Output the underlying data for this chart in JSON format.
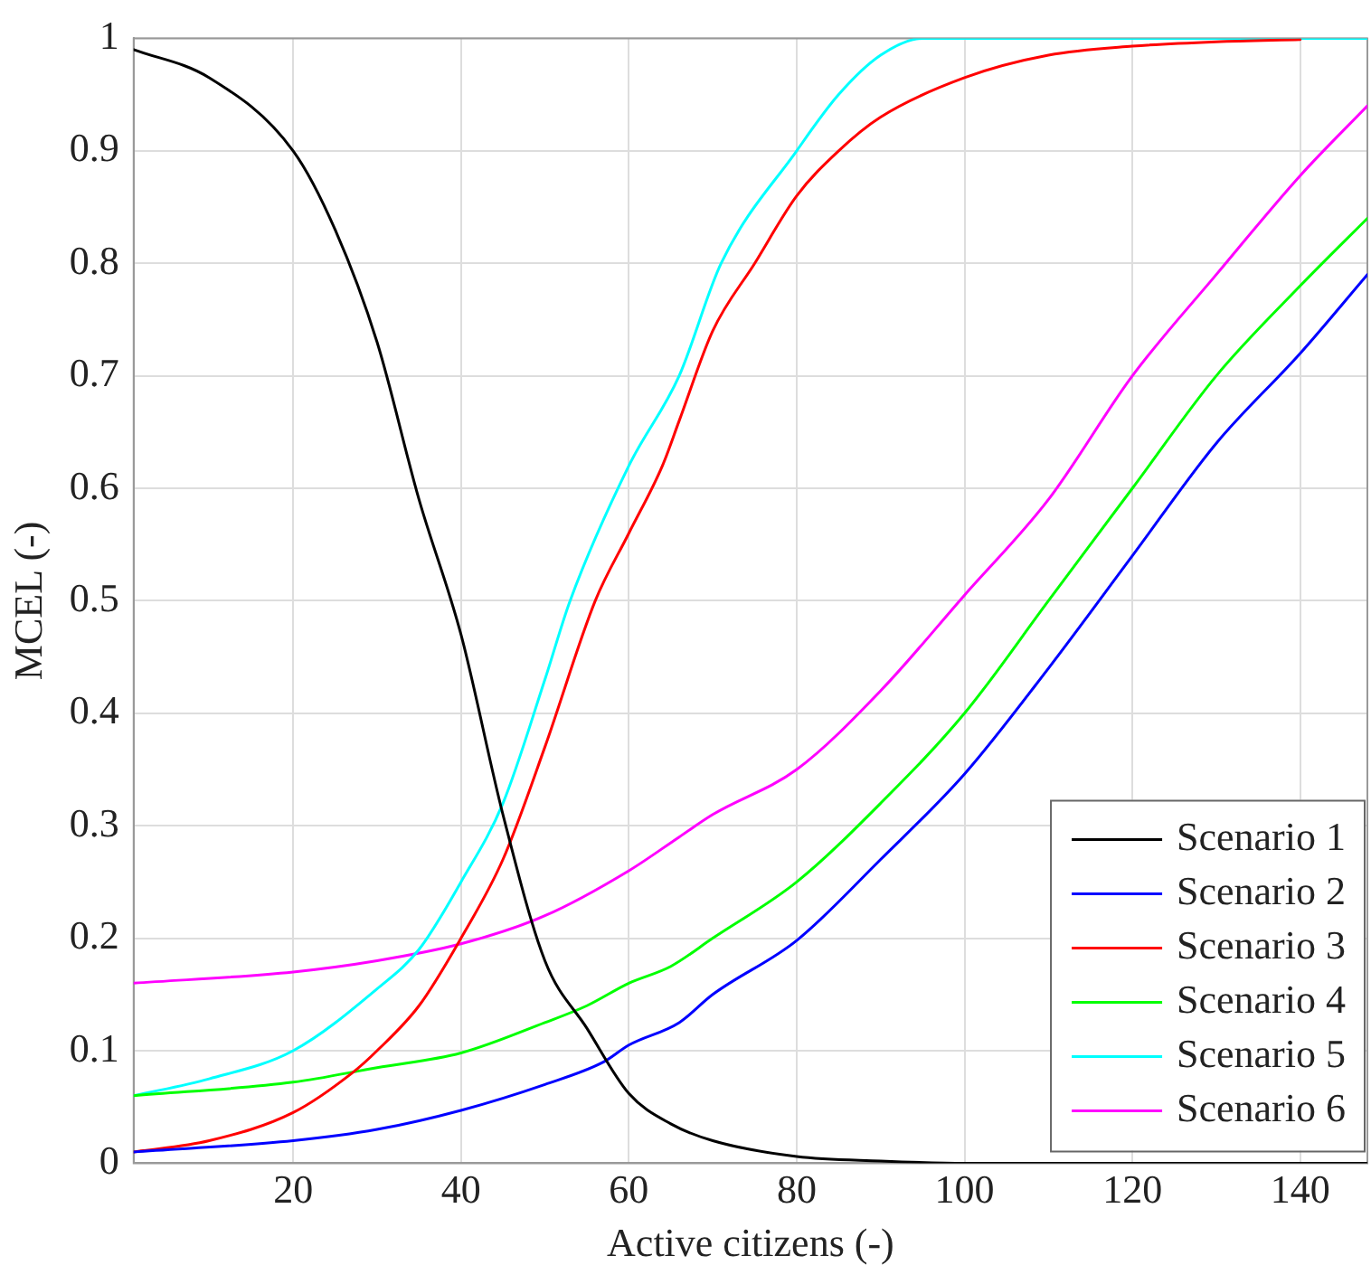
{
  "chart_data": {
    "type": "line",
    "xlabel": "Active citizens (-)",
    "ylabel": "MCEL (-)",
    "xlim": [
      1,
      148
    ],
    "ylim": [
      0,
      1
    ],
    "xticks": [
      20,
      40,
      60,
      80,
      100,
      120,
      140
    ],
    "yticks": [
      0,
      0.1,
      0.2,
      0.3,
      0.4,
      0.5,
      0.6,
      0.7,
      0.8,
      0.9,
      1
    ],
    "grid": true,
    "legend": "bottom right",
    "marker": "none",
    "line_style": "solid",
    "series": [
      {
        "name": "Scenario 1",
        "color": "#000000",
        "x": [
          1,
          10,
          20,
          25,
          30,
          35,
          40,
          45,
          50,
          55,
          60,
          65,
          70,
          80,
          90,
          100,
          148
        ],
        "values": [
          0.99,
          0.965,
          0.9,
          0.83,
          0.73,
          0.59,
          0.47,
          0.31,
          0.18,
          0.12,
          0.062,
          0.035,
          0.02,
          0.006,
          0.002,
          0,
          0
        ]
      },
      {
        "name": "Scenario 2",
        "color": "#0000ff",
        "x": [
          1,
          20,
          30,
          40,
          50,
          57,
          60,
          66,
          70,
          80,
          90,
          100,
          110,
          120,
          130,
          140,
          148
        ],
        "values": [
          0.01,
          0.02,
          0.03,
          0.047,
          0.07,
          0.09,
          0.105,
          0.125,
          0.15,
          0.198,
          0.27,
          0.346,
          0.44,
          0.54,
          0.64,
          0.72,
          0.79
        ]
      },
      {
        "name": "Scenario 3",
        "color": "#ff0000",
        "x": [
          1,
          10,
          20,
          27,
          30,
          35,
          40,
          45,
          50,
          56,
          60,
          64,
          66,
          70,
          75,
          80,
          85,
          90,
          100,
          110,
          120,
          130,
          140
        ],
        "values": [
          0.01,
          0.02,
          0.045,
          0.08,
          0.1,
          0.14,
          0.2,
          0.27,
          0.37,
          0.5,
          0.56,
          0.62,
          0.66,
          0.74,
          0.8,
          0.86,
          0.9,
          0.93,
          0.965,
          0.985,
          0.993,
          0.997,
          0.999
        ]
      },
      {
        "name": "Scenario 4",
        "color": "#00ff00",
        "x": [
          1,
          20,
          30,
          40,
          50,
          55,
          60,
          65,
          70,
          80,
          90,
          100,
          110,
          120,
          130,
          140,
          148
        ],
        "values": [
          0.06,
          0.072,
          0.085,
          0.098,
          0.125,
          0.14,
          0.16,
          0.175,
          0.2,
          0.25,
          0.32,
          0.4,
          0.5,
          0.6,
          0.7,
          0.78,
          0.84
        ]
      },
      {
        "name": "Scenario 5",
        "color": "#00ffff",
        "x": [
          1,
          10,
          20,
          30,
          35,
          40,
          45,
          50,
          53,
          60,
          66,
          71,
          80,
          85,
          90,
          95,
          148
        ],
        "values": [
          0.06,
          0.075,
          0.1,
          0.155,
          0.19,
          0.25,
          0.32,
          0.43,
          0.5,
          0.62,
          0.7,
          0.8,
          0.9,
          0.95,
          0.985,
          1,
          1
        ]
      },
      {
        "name": "Scenario 6",
        "color": "#ff00ff",
        "x": [
          1,
          20,
          30,
          40,
          50,
          60,
          66,
          70,
          80,
          90,
          100,
          110,
          120,
          130,
          140,
          148
        ],
        "values": [
          0.16,
          0.17,
          0.18,
          0.195,
          0.22,
          0.26,
          0.29,
          0.31,
          0.35,
          0.42,
          0.505,
          0.59,
          0.7,
          0.79,
          0.878,
          0.94
        ]
      }
    ]
  }
}
